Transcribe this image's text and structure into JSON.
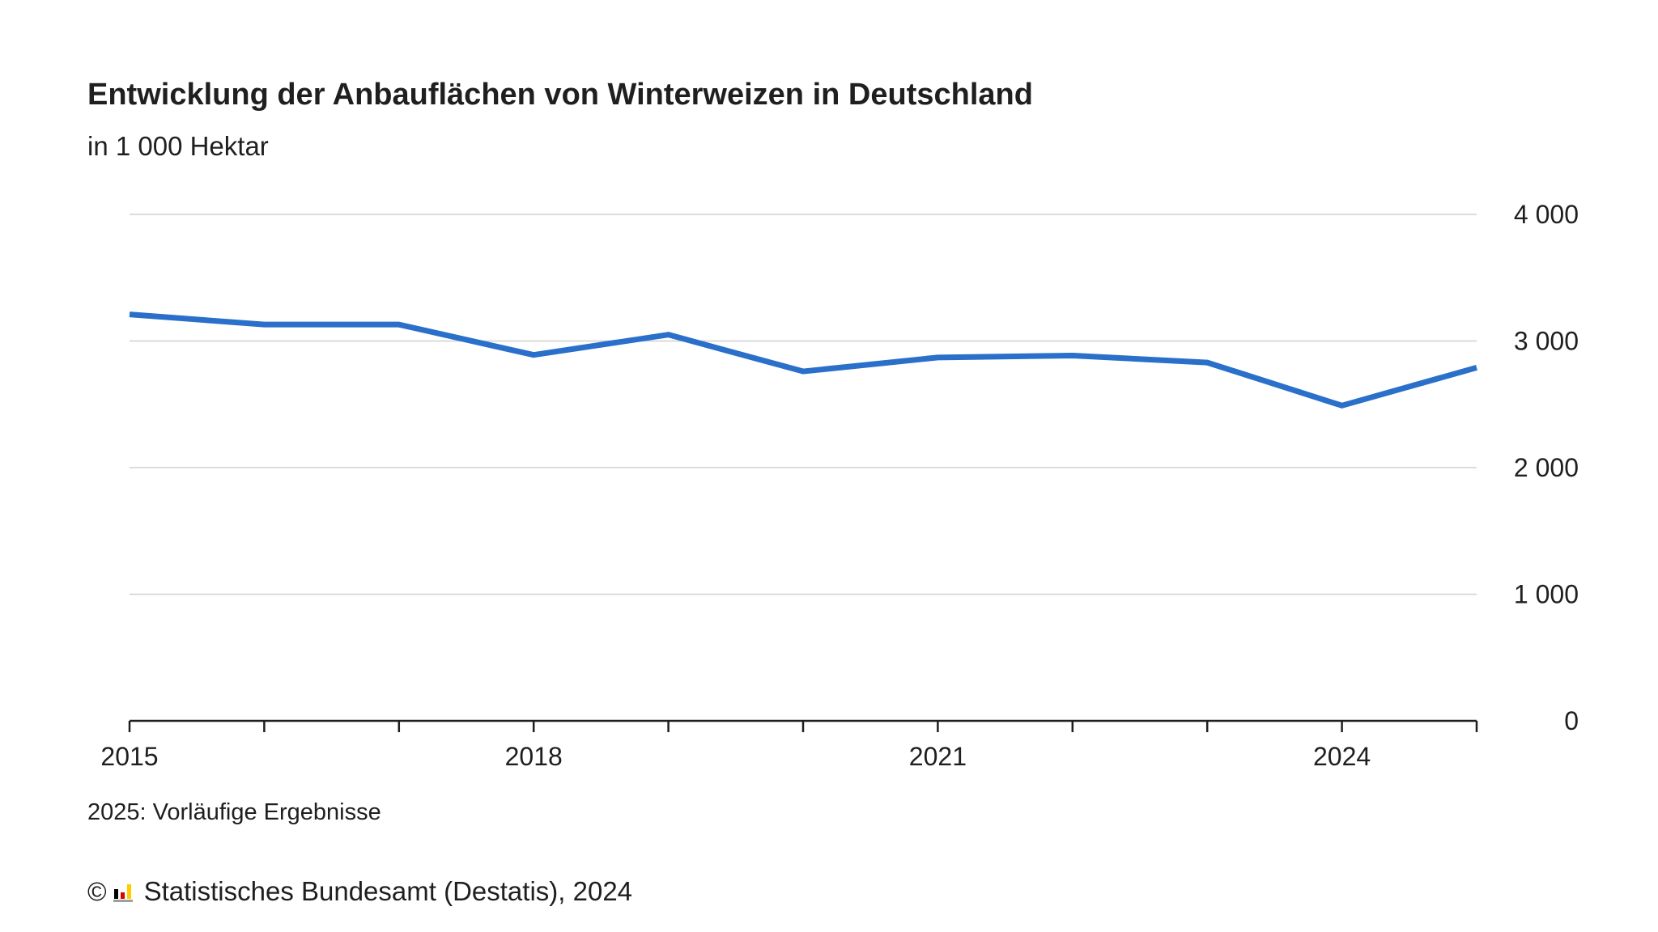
{
  "header": {
    "title": "Entwicklung der Anbauflächen von Winterweizen in Deutschland",
    "subtitle": "in 1 000 Hektar"
  },
  "footer": {
    "note": "2025: Vorläufige Ergebnisse",
    "copyright_symbol": "©",
    "source": "Statistisches Bundesamt (Destatis), 2024",
    "logo_icon": "destatis-logo-icon",
    "logo_colors": [
      "#000000",
      "#dd0000",
      "#ffcc00",
      "#9e9e9e"
    ]
  },
  "chart_data": {
    "type": "line",
    "x": [
      2015,
      2016,
      2017,
      2018,
      2019,
      2020,
      2021,
      2022,
      2023,
      2024,
      2025
    ],
    "series": [
      {
        "values": [
          3210,
          3130,
          3130,
          2890,
          3050,
          2760,
          2870,
          2885,
          2830,
          2490,
          2790
        ],
        "color": "#2a6fc9"
      }
    ],
    "xticks": [
      2015,
      2016,
      2017,
      2018,
      2019,
      2020,
      2021,
      2022,
      2023,
      2024,
      2025
    ],
    "xtick_labels": [
      {
        "value": 2015,
        "label": "2015"
      },
      {
        "value": 2018,
        "label": "2018"
      },
      {
        "value": 2021,
        "label": "2021"
      },
      {
        "value": 2024,
        "label": "2024"
      }
    ],
    "yticks": [
      {
        "value": 0,
        "label": "0"
      },
      {
        "value": 1000,
        "label": "1 000"
      },
      {
        "value": 2000,
        "label": "2 000"
      },
      {
        "value": 3000,
        "label": "3 000"
      },
      {
        "value": 4000,
        "label": "4 000"
      }
    ],
    "xlim": [
      2015,
      2025
    ],
    "ylim": [
      0,
      4000
    ],
    "grid": true,
    "y_axis_side": "right",
    "colors": {
      "line": "#2a6fc9",
      "grid": "#d0d0d0",
      "axis": "#1f1f1f",
      "text": "#1f1f1f"
    }
  }
}
